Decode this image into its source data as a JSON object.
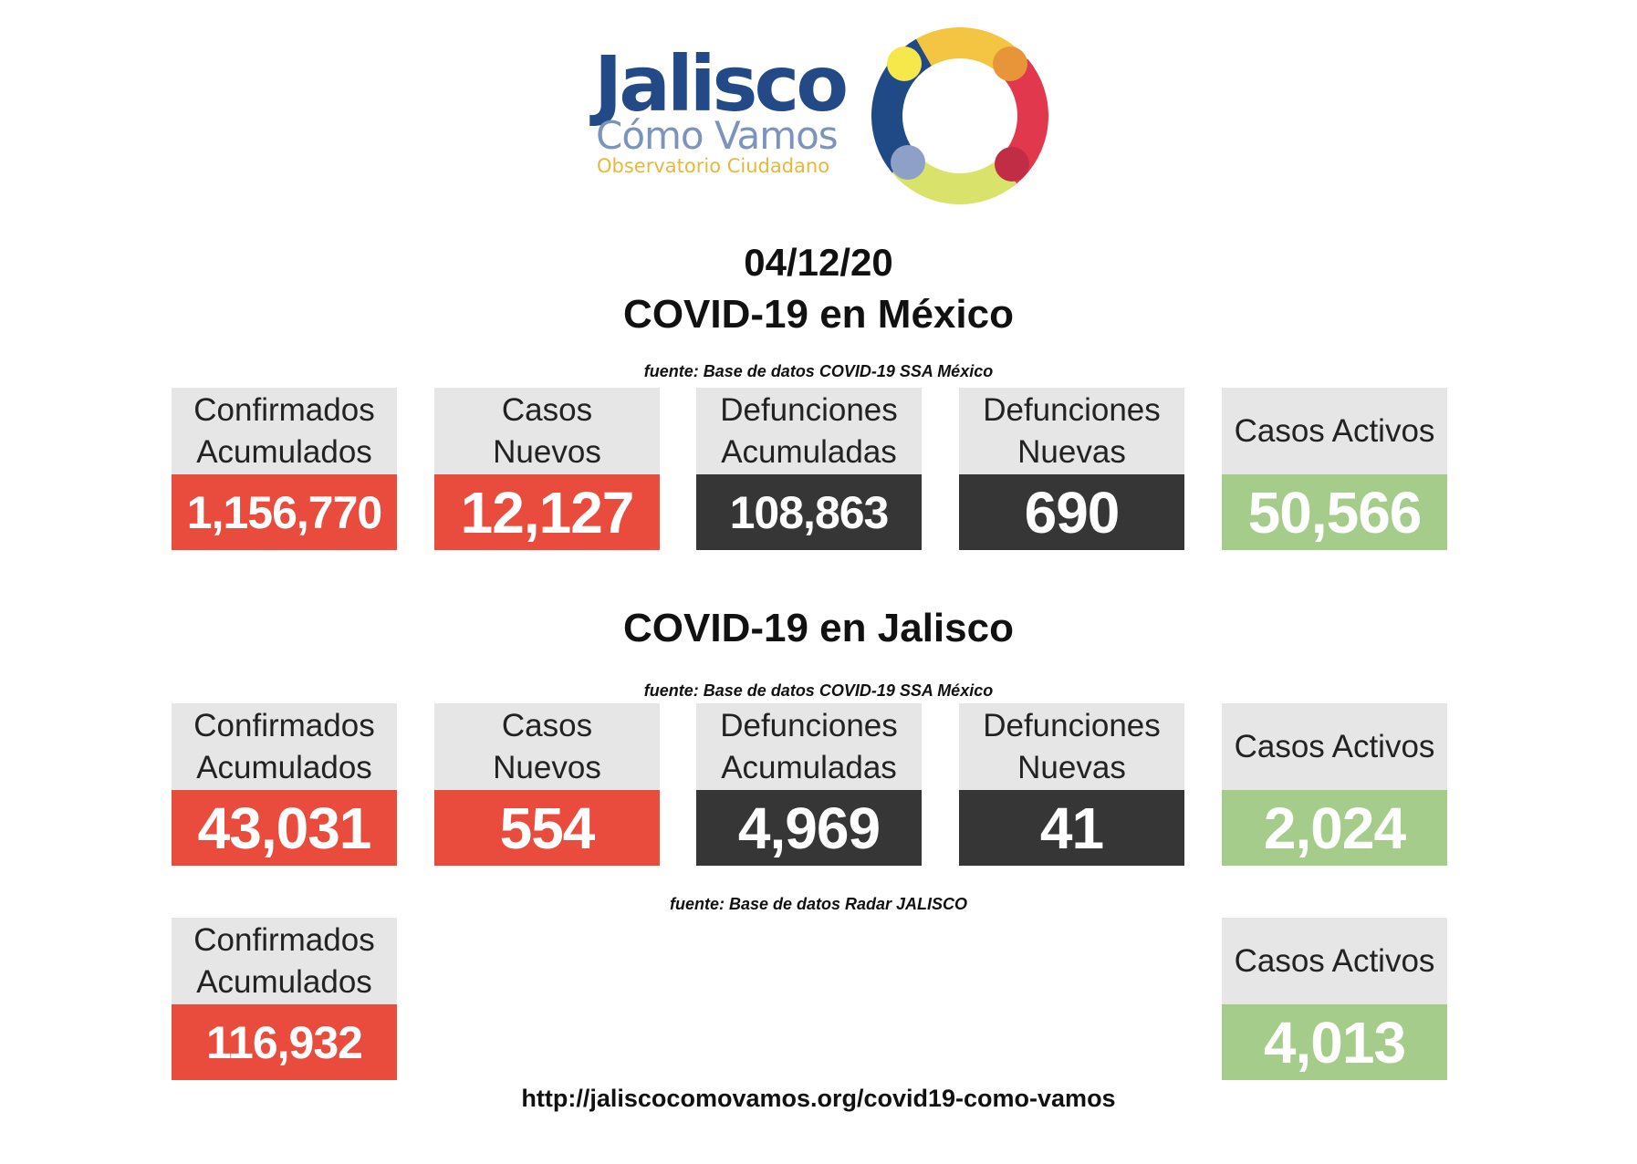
{
  "logo": {
    "title": "Jalisco",
    "subtitle": "Cómo Vamos",
    "tagline": "Observatorio Ciudadano",
    "ring_colors": [
      "#f4c542",
      "#e2384e",
      "#d9e26a",
      "#1f4a86"
    ]
  },
  "header": {
    "date": "04/12/20",
    "mexico_title": "COVID-19 en México",
    "jalisco_title": "COVID-19 en Jalisco"
  },
  "sources": {
    "ssa": "fuente: Base de datos COVID-19 SSA México",
    "radar": "fuente: Base de datos Radar JALISCO"
  },
  "labels": {
    "confirmados": [
      "Confirmados",
      "Acumulados"
    ],
    "casos_nuevos": [
      "Casos",
      "Nuevos"
    ],
    "def_acum": [
      "Defunciones",
      "Acumuladas"
    ],
    "def_nuevas": [
      "Defunciones",
      "Nuevas"
    ],
    "activos": "Casos Activos"
  },
  "mexico": {
    "confirmados": "1,156,770",
    "casos_nuevos": "12,127",
    "defunciones_acumuladas": "108,863",
    "defunciones_nuevas": "690",
    "casos_activos": "50,566"
  },
  "jalisco_ssa": {
    "confirmados": "43,031",
    "casos_nuevos": "554",
    "defunciones_acumuladas": "4,969",
    "defunciones_nuevas": "41",
    "casos_activos": "2,024"
  },
  "jalisco_radar": {
    "confirmados": "116,932",
    "casos_activos": "4,013"
  },
  "footer": {
    "url": "http://jaliscocomovamos.org/covid19-como-vamos"
  }
}
